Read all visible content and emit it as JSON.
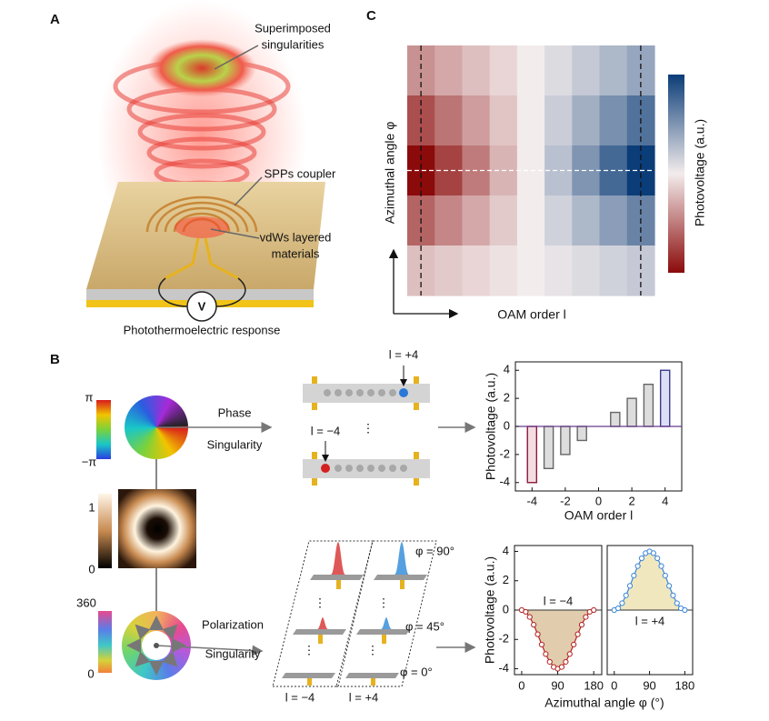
{
  "panel_labels": [
    "A",
    "B",
    "C"
  ],
  "panel_a": {
    "labels": {
      "superimposed": [
        "Superimposed",
        "singularities"
      ],
      "spps": "SPPs coupler",
      "vdws": [
        "vdWs layered",
        "materials"
      ],
      "voltmeter": "V",
      "caption": "Photothermoelectric response"
    }
  },
  "panel_b": {
    "phase": {
      "colorbar_ticks": [
        "π",
        "−π"
      ],
      "labels": [
        "Phase",
        "Singularity"
      ],
      "device_labels": [
        "l = +4",
        "l = −4"
      ]
    },
    "intensity": {
      "colorbar_ticks": [
        1,
        0
      ]
    },
    "polarization": {
      "colorbar_ticks": [
        360,
        0
      ],
      "labels": [
        "Polarization",
        "Singularity"
      ],
      "angle_labels": [
        "φ = 90°",
        "φ = 45°",
        "φ = 0°"
      ],
      "device_labels": [
        "l = −4",
        "l = +4"
      ]
    }
  },
  "chart_data": [
    {
      "type": "heatmap",
      "xlabel": "OAM order l",
      "ylabel": "Azimuthal angle φ",
      "colorbar_label": "Photovoltage (a.u.)",
      "values": [
        [
          -1.6,
          -2.8,
          -4,
          -2.4,
          -0.8
        ],
        [
          -1.2,
          -2.1,
          -3,
          -1.8,
          -0.6
        ],
        [
          -0.8,
          -1.4,
          -2,
          -1.2,
          -0.4
        ],
        [
          -0.4,
          -0.7,
          -1,
          -0.6,
          -0.2
        ],
        [
          0,
          0,
          0,
          0,
          0
        ],
        [
          0.4,
          0.7,
          1,
          0.6,
          0.2
        ],
        [
          0.8,
          1.4,
          2,
          1.2,
          0.4
        ],
        [
          1.2,
          2.1,
          3,
          1.8,
          0.6
        ],
        [
          1.6,
          2.8,
          4,
          2.4,
          0.8
        ]
      ],
      "colors": [
        "#8b0a0a",
        "#f3ecec",
        "#0b3d78"
      ]
    },
    {
      "type": "bar",
      "xlabel": "OAM order l",
      "ylabel": "Photovoltage (a.u.)",
      "x": [
        -4,
        -3,
        -2,
        -1,
        1,
        2,
        3,
        4
      ],
      "values": [
        -4,
        -3,
        -2,
        -1,
        1,
        2,
        3,
        4
      ],
      "colors": [
        "#8b1a3a",
        "#666666",
        "#666666",
        "#666666",
        "#666666",
        "#666666",
        "#666666",
        "#3a3a8c"
      ],
      "fill_colors": [
        "#f4dde2",
        "#dddddd",
        "#dddddd",
        "#dddddd",
        "#dddddd",
        "#dddddd",
        "#dddddd",
        "#dde0f4"
      ],
      "xlim": [
        -5,
        5
      ],
      "ylim": [
        -4.6,
        4.6
      ],
      "xticks": [
        -4,
        -2,
        0,
        2,
        4
      ],
      "yticks": [
        -4,
        -2,
        0,
        2,
        4
      ]
    },
    {
      "type": "line",
      "xlabel": "Azimuthal angle φ (°)",
      "ylabel": "Photovoltage (a.u.)",
      "annotation": "l = −4",
      "x": [
        0,
        10,
        20,
        30,
        40,
        50,
        60,
        70,
        80,
        90,
        100,
        110,
        120,
        130,
        140,
        150,
        160,
        170,
        180
      ],
      "values": [
        0,
        -0.12,
        -0.47,
        -1,
        -1.65,
        -2.35,
        -3,
        -3.53,
        -3.88,
        -4,
        -3.88,
        -3.53,
        -3,
        -2.35,
        -1.65,
        -1,
        -0.47,
        -0.12,
        0
      ],
      "color": "#b22222",
      "fill_color": "#c9a36a",
      "xlim": [
        -18,
        200
      ],
      "ylim": [
        -4.4,
        4.4
      ],
      "xticks": [
        0,
        90,
        180
      ],
      "yticks": [
        -4,
        -2,
        0,
        2,
        4
      ]
    },
    {
      "type": "line",
      "annotation": "l = +4",
      "x": [
        0,
        10,
        20,
        30,
        40,
        50,
        60,
        70,
        80,
        90,
        100,
        110,
        120,
        130,
        140,
        150,
        160,
        170,
        180
      ],
      "values": [
        0,
        0.12,
        0.47,
        1,
        1.65,
        2.35,
        3,
        3.53,
        3.88,
        4,
        3.88,
        3.53,
        3,
        2.35,
        1.65,
        1,
        0.47,
        0.12,
        0
      ],
      "color": "#3a86d8",
      "fill_color": "#e6d48a",
      "xlim": [
        -18,
        200
      ],
      "ylim": [
        -4.4,
        4.4
      ],
      "xticks": [
        0,
        90,
        180
      ]
    }
  ]
}
